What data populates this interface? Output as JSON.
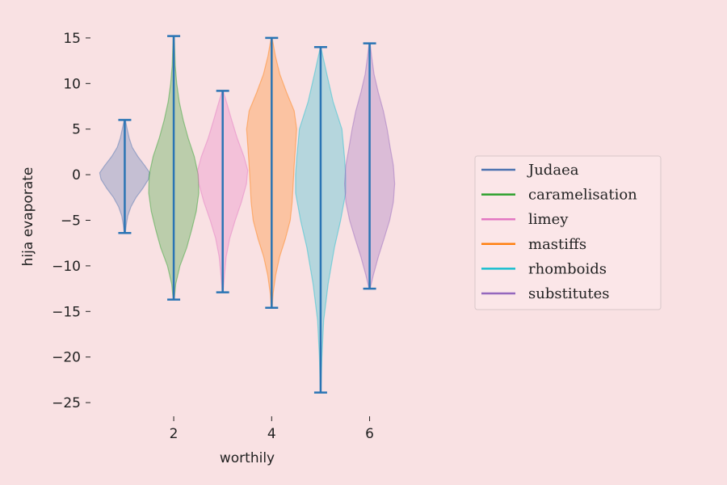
{
  "chart_data": {
    "type": "violin",
    "xlabel": "worthily",
    "ylabel": "hija evaporate",
    "ylim": [
      -26.5,
      16.5
    ],
    "xlim": [
      0.3,
      6.7
    ],
    "x_ticks": [
      2,
      4,
      6
    ],
    "y_ticks": [
      15,
      10,
      5,
      0,
      -5,
      -10,
      -15,
      -20,
      -25
    ],
    "legend_position": "center-right",
    "cap_color": "#2a74b4",
    "series": [
      {
        "name": "Judaea",
        "x": 1,
        "min": -6.4,
        "max": 6.0,
        "color": "#4c72b0",
        "profile": [
          [
            -6.4,
            0.02
          ],
          [
            -5.5,
            0.06
          ],
          [
            -4.5,
            0.12
          ],
          [
            -3.5,
            0.25
          ],
          [
            -2.5,
            0.45
          ],
          [
            -1.5,
            0.72
          ],
          [
            -0.5,
            0.95
          ],
          [
            0.2,
            1.0
          ],
          [
            1.0,
            0.8
          ],
          [
            2.0,
            0.52
          ],
          [
            3.0,
            0.3
          ],
          [
            4.0,
            0.18
          ],
          [
            5.0,
            0.1
          ],
          [
            6.0,
            0.02
          ]
        ]
      },
      {
        "name": "caramelisation",
        "x": 2,
        "min": -13.7,
        "max": 15.2,
        "color": "#2ca02c",
        "profile": [
          [
            -13.7,
            0.02
          ],
          [
            -12,
            0.08
          ],
          [
            -10,
            0.25
          ],
          [
            -8,
            0.52
          ],
          [
            -6,
            0.72
          ],
          [
            -4,
            0.9
          ],
          [
            -2,
            1.0
          ],
          [
            0,
            0.98
          ],
          [
            2,
            0.82
          ],
          [
            4,
            0.58
          ],
          [
            6,
            0.38
          ],
          [
            8,
            0.22
          ],
          [
            10,
            0.12
          ],
          [
            12,
            0.06
          ],
          [
            15.2,
            0.02
          ]
        ]
      },
      {
        "name": "limey",
        "x": 3,
        "min": -12.9,
        "max": 9.2,
        "color": "#e377c2",
        "profile": [
          [
            -12.9,
            0.02
          ],
          [
            -11,
            0.07
          ],
          [
            -9,
            0.14
          ],
          [
            -7,
            0.28
          ],
          [
            -5,
            0.5
          ],
          [
            -3,
            0.75
          ],
          [
            -1,
            0.95
          ],
          [
            0.5,
            1.0
          ],
          [
            2,
            0.85
          ],
          [
            4,
            0.58
          ],
          [
            6,
            0.36
          ],
          [
            8,
            0.15
          ],
          [
            9.2,
            0.02
          ]
        ]
      },
      {
        "name": "mastiffs",
        "x": 4,
        "min": -14.6,
        "max": 15.0,
        "color": "#ff7f0e",
        "profile": [
          [
            -14.6,
            0.02
          ],
          [
            -13,
            0.06
          ],
          [
            -11,
            0.16
          ],
          [
            -9,
            0.32
          ],
          [
            -7,
            0.55
          ],
          [
            -5,
            0.74
          ],
          [
            -3,
            0.82
          ],
          [
            -1,
            0.86
          ],
          [
            1,
            0.9
          ],
          [
            3,
            0.95
          ],
          [
            5,
            1.0
          ],
          [
            7,
            0.9
          ],
          [
            9,
            0.6
          ],
          [
            11,
            0.33
          ],
          [
            13,
            0.15
          ],
          [
            15,
            0.02
          ]
        ]
      },
      {
        "name": "rhomboids",
        "x": 5,
        "min": -23.9,
        "max": 14.0,
        "color": "#17becf",
        "profile": [
          [
            -23.9,
            0.01
          ],
          [
            -20,
            0.05
          ],
          [
            -16,
            0.12
          ],
          [
            -12,
            0.3
          ],
          [
            -8,
            0.55
          ],
          [
            -5,
            0.8
          ],
          [
            -2,
            1.0
          ],
          [
            0,
            1.0
          ],
          [
            2,
            0.95
          ],
          [
            5,
            0.85
          ],
          [
            8,
            0.5
          ],
          [
            11,
            0.25
          ],
          [
            14,
            0.01
          ]
        ]
      },
      {
        "name": "substitutes",
        "x": 6,
        "min": -12.5,
        "max": 14.4,
        "color": "#9467bd",
        "profile": [
          [
            -12.5,
            0.02
          ],
          [
            -11,
            0.15
          ],
          [
            -9,
            0.35
          ],
          [
            -7,
            0.58
          ],
          [
            -5,
            0.8
          ],
          [
            -3,
            0.95
          ],
          [
            -1,
            1.0
          ],
          [
            1,
            0.95
          ],
          [
            3,
            0.82
          ],
          [
            5,
            0.7
          ],
          [
            7,
            0.55
          ],
          [
            9,
            0.35
          ],
          [
            11,
            0.18
          ],
          [
            13,
            0.08
          ],
          [
            14.4,
            0.02
          ]
        ]
      }
    ]
  }
}
